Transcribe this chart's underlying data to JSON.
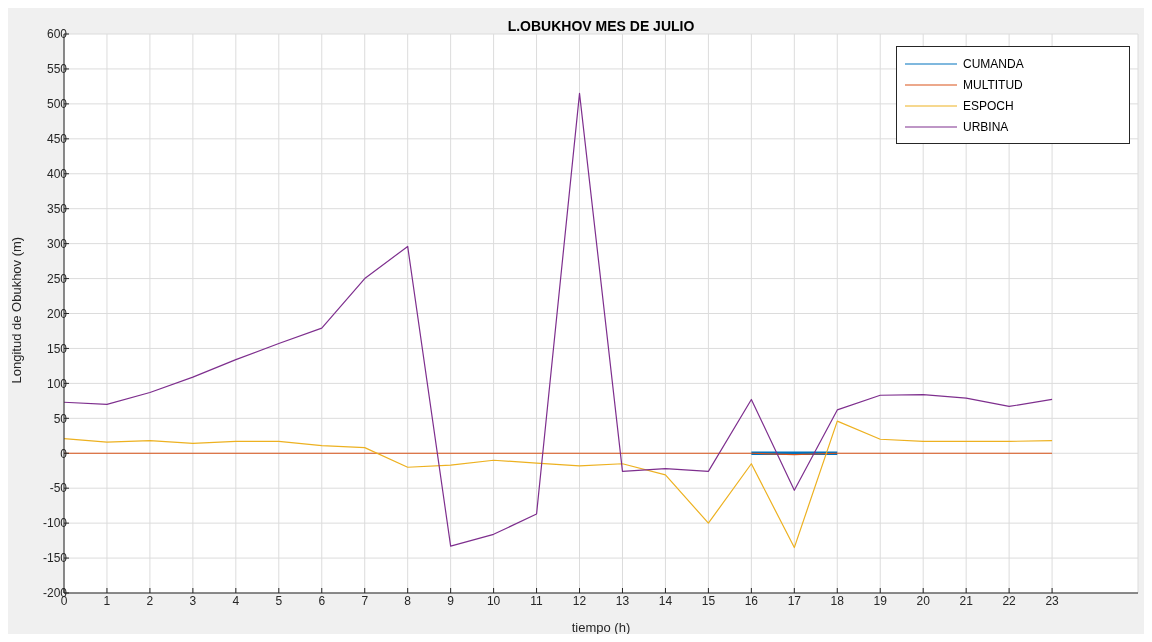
{
  "chart_data": {
    "type": "line",
    "title": "L.OBUKHOV MES DE JULIO",
    "xlabel": "tiempo (h)",
    "ylabel": "Longitud de Obukhov (m)",
    "x": [
      0,
      1,
      2,
      3,
      4,
      5,
      6,
      7,
      8,
      9,
      10,
      11,
      12,
      13,
      14,
      15,
      16,
      17,
      18,
      19,
      20,
      21,
      22,
      23
    ],
    "series": [
      {
        "name": "CUMANDA",
        "color": "#0072bd",
        "values": [
          null,
          null,
          null,
          null,
          null,
          null,
          null,
          null,
          null,
          null,
          null,
          null,
          null,
          null,
          null,
          null,
          0,
          0,
          0,
          null,
          null,
          null,
          null,
          null
        ]
      },
      {
        "name": "MULTITUD",
        "color": "#d95319",
        "values": [
          0,
          0,
          0,
          0,
          0,
          0,
          0,
          0,
          0,
          0,
          0,
          0,
          0,
          0,
          0,
          0,
          0,
          -2,
          0,
          0,
          0,
          0,
          0,
          0
        ]
      },
      {
        "name": "ESPOCH",
        "color": "#edb120",
        "values": [
          21,
          16,
          18,
          14,
          17,
          17,
          11,
          8,
          -20,
          -17,
          -10,
          -14,
          -18,
          -15,
          -31,
          -100,
          -15,
          -135,
          46,
          20,
          17,
          17,
          17,
          18
        ]
      },
      {
        "name": "URBINA",
        "color": "#7e2f8e",
        "values": [
          73,
          70,
          87,
          109,
          134,
          157,
          179,
          250,
          296,
          -133,
          -116,
          -87,
          515,
          -26,
          -22,
          -26,
          77,
          -53,
          62,
          83,
          84,
          79,
          67,
          77
        ]
      }
    ],
    "xlim": [
      0,
      25
    ],
    "xticks": [
      0,
      1,
      2,
      3,
      4,
      5,
      6,
      7,
      8,
      9,
      10,
      11,
      12,
      13,
      14,
      15,
      16,
      17,
      18,
      19,
      20,
      21,
      22,
      23
    ],
    "ylim": [
      -200,
      600
    ],
    "yticks": [
      -200,
      -150,
      -100,
      -50,
      0,
      50,
      100,
      150,
      200,
      250,
      300,
      350,
      400,
      450,
      500,
      550,
      600
    ],
    "grid": true,
    "legend": "top right",
    "marker": "none",
    "line_style": "solid"
  }
}
